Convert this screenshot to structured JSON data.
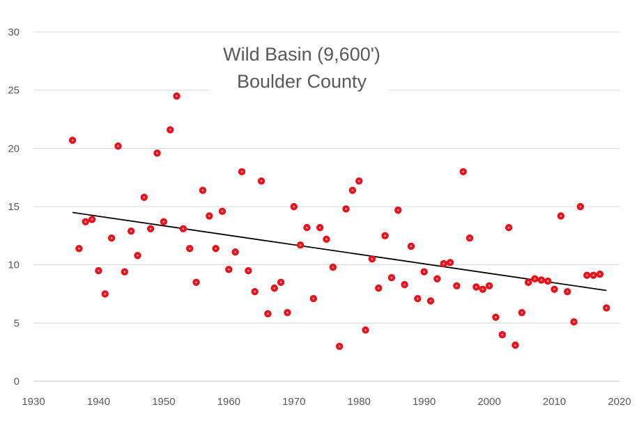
{
  "chart_data": {
    "type": "scatter",
    "title": "Wild Basin (9,600')",
    "subtitle": "Boulder County",
    "xlabel": "",
    "ylabel": "",
    "xlim": [
      1930,
      2020
    ],
    "ylim": [
      0,
      30
    ],
    "x_ticks": [
      1930,
      1940,
      1950,
      1960,
      1970,
      1980,
      1990,
      2000,
      2010,
      2020
    ],
    "y_ticks": [
      0,
      5,
      10,
      15,
      20,
      25,
      30
    ],
    "grid": "horizontal",
    "legend": "none",
    "marker_color": "#e8121c",
    "trendline_color": "#000000",
    "trendline": {
      "type": "linear",
      "x": [
        1936,
        2018
      ],
      "y": [
        14.5,
        7.8
      ]
    },
    "x": [
      1936,
      1937,
      1938,
      1939,
      1940,
      1941,
      1942,
      1943,
      1944,
      1945,
      1946,
      1947,
      1948,
      1949,
      1950,
      1951,
      1952,
      1953,
      1954,
      1955,
      1956,
      1957,
      1958,
      1959,
      1960,
      1961,
      1962,
      1963,
      1964,
      1965,
      1966,
      1967,
      1968,
      1969,
      1970,
      1971,
      1972,
      1973,
      1974,
      1975,
      1976,
      1977,
      1978,
      1979,
      1980,
      1981,
      1982,
      1983,
      1984,
      1985,
      1986,
      1987,
      1988,
      1989,
      1990,
      1991,
      1992,
      1993,
      1994,
      1995,
      1996,
      1997,
      1998,
      1999,
      2000,
      2001,
      2002,
      2003,
      2004,
      2005,
      2006,
      2007,
      2008,
      2009,
      2010,
      2011,
      2012,
      2013,
      2014,
      2015,
      2016,
      2017,
      2018
    ],
    "y": [
      20.7,
      11.4,
      13.7,
      13.9,
      9.5,
      7.5,
      12.3,
      20.2,
      9.4,
      12.9,
      10.8,
      15.8,
      13.1,
      19.6,
      13.7,
      21.6,
      24.5,
      13.1,
      11.4,
      8.5,
      16.4,
      14.2,
      11.4,
      14.6,
      9.6,
      11.1,
      18.0,
      9.5,
      7.7,
      17.2,
      5.8,
      8.0,
      8.5,
      5.9,
      15.0,
      11.7,
      13.2,
      7.1,
      13.2,
      12.2,
      9.8,
      3.0,
      14.8,
      16.4,
      17.2,
      4.4,
      10.5,
      8.0,
      12.5,
      8.9,
      14.7,
      8.3,
      11.6,
      7.1,
      9.4,
      6.9,
      8.8,
      10.1,
      10.2,
      8.2,
      18.0,
      12.3,
      8.1,
      7.9,
      8.2,
      5.5,
      4.0,
      13.2,
      3.1,
      5.9,
      8.5,
      8.8,
      8.7,
      8.6,
      7.9,
      14.2,
      7.7,
      5.1,
      15.0,
      9.1,
      9.1,
      9.2,
      6.3
    ]
  }
}
